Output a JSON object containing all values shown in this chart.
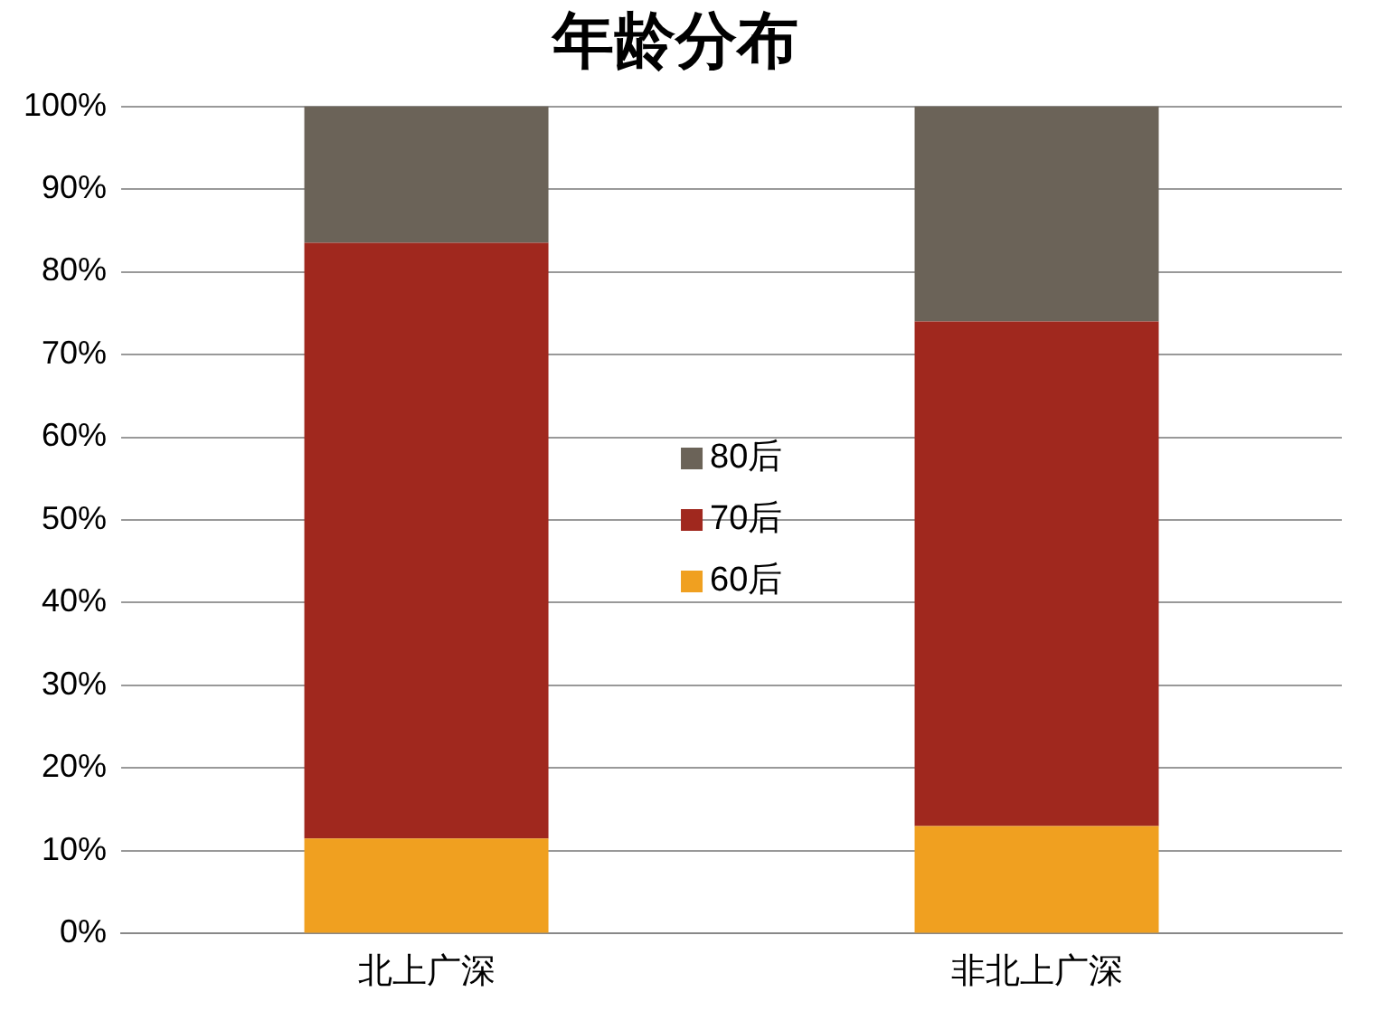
{
  "chart_data": {
    "type": "bar",
    "title": "年龄分布",
    "categories": [
      "北上广深",
      "非北上广深"
    ],
    "stacked": true,
    "series": [
      {
        "name": "60后",
        "color": "#f0a020",
        "values": [
          11.5,
          13
        ]
      },
      {
        "name": "70后",
        "color": "#a0281e",
        "values": [
          72,
          61
        ]
      },
      {
        "name": "80后",
        "color": "#6b6358",
        "values": [
          16.5,
          26
        ]
      }
    ],
    "ylim": [
      0,
      100
    ],
    "yticks": [
      {
        "value": 0,
        "label": "0%"
      },
      {
        "value": 10,
        "label": "10%"
      },
      {
        "value": 20,
        "label": "20%"
      },
      {
        "value": 30,
        "label": "30%"
      },
      {
        "value": 40,
        "label": "40%"
      },
      {
        "value": 50,
        "label": "50%"
      },
      {
        "value": 60,
        "label": "60%"
      },
      {
        "value": 70,
        "label": "70%"
      },
      {
        "value": 80,
        "label": "80%"
      },
      {
        "value": 90,
        "label": "90%"
      },
      {
        "value": 100,
        "label": "100%"
      }
    ],
    "grid": "y",
    "legend": "center"
  }
}
